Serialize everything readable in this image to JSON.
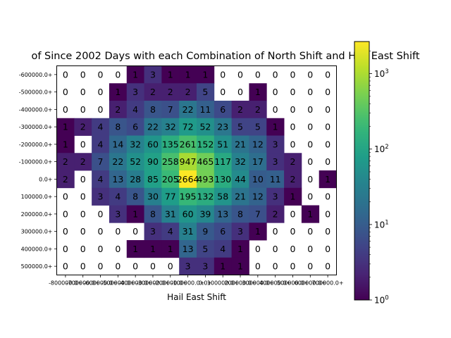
{
  "chart_data": {
    "type": "heatmap",
    "title": "of Since 2002 Days with each Combination of North Shift and Hail East Shift",
    "xlabel": "Hail East Shift",
    "ylabel": "",
    "x_tick_labels": [
      "-800000.0+",
      "-700000.0+",
      "-600000.0+",
      "-500000.0+",
      "-400000.0+",
      "-300000.0+",
      "-200000.0+",
      "-100000.0+",
      "0.0+",
      "100000.0+",
      "200000.0+",
      "300000.0+",
      "400000.0+",
      "500000.0+",
      "600000.0+",
      "700000.0+"
    ],
    "y_tick_labels": [
      "-600000.0+",
      "-500000.0+",
      "-400000.0+",
      "-300000.0+",
      "-200000.0+",
      "-100000.0+",
      "0.0+",
      "100000.0+",
      "200000.0+",
      "300000.0+",
      "400000.0+",
      "500000.0+"
    ],
    "values": [
      [
        0,
        0,
        0,
        0,
        1,
        3,
        1,
        1,
        1,
        0,
        0,
        0,
        0,
        0,
        0,
        0
      ],
      [
        0,
        0,
        0,
        1,
        3,
        2,
        2,
        2,
        5,
        0,
        0,
        1,
        0,
        0,
        0,
        0
      ],
      [
        0,
        0,
        0,
        2,
        4,
        8,
        7,
        22,
        11,
        6,
        2,
        2,
        0,
        0,
        0,
        0
      ],
      [
        1,
        2,
        4,
        8,
        6,
        22,
        32,
        72,
        52,
        23,
        5,
        5,
        1,
        0,
        0,
        0
      ],
      [
        1,
        0,
        4,
        14,
        32,
        60,
        135,
        261,
        152,
        51,
        21,
        12,
        3,
        0,
        0,
        0
      ],
      [
        2,
        2,
        7,
        22,
        52,
        90,
        258,
        947,
        465,
        117,
        32,
        17,
        3,
        2,
        0,
        0
      ],
      [
        2,
        0,
        4,
        13,
        28,
        85,
        205,
        2664,
        493,
        130,
        44,
        10,
        11,
        2,
        0,
        1
      ],
      [
        0,
        0,
        3,
        4,
        8,
        30,
        77,
        195,
        132,
        58,
        21,
        12,
        3,
        1,
        0,
        0
      ],
      [
        0,
        0,
        0,
        3,
        1,
        8,
        31,
        60,
        39,
        13,
        8,
        7,
        2,
        0,
        1,
        0
      ],
      [
        0,
        0,
        0,
        0,
        0,
        3,
        4,
        31,
        9,
        6,
        3,
        1,
        0,
        0,
        0,
        0
      ],
      [
        0,
        0,
        0,
        0,
        1,
        1,
        1,
        13,
        5,
        4,
        1,
        0,
        0,
        0,
        0,
        0
      ],
      [
        0,
        0,
        0,
        0,
        0,
        0,
        0,
        3,
        3,
        1,
        1,
        0,
        0,
        0,
        0,
        0
      ]
    ],
    "colorbar": {
      "scale": "log",
      "min": 1,
      "max": 2664,
      "ticks": [
        1,
        10,
        100,
        1000
      ],
      "tick_labels": [
        "10^0",
        "10^1",
        "10^2",
        "10^3"
      ]
    },
    "colormap": [
      "#440154",
      "#482878",
      "#3e4989",
      "#31688e",
      "#26828e",
      "#1f9e89",
      "#35b779",
      "#6ece58",
      "#b5de2b",
      "#fde725"
    ],
    "zero_cells": "blank",
    "grid": false
  }
}
